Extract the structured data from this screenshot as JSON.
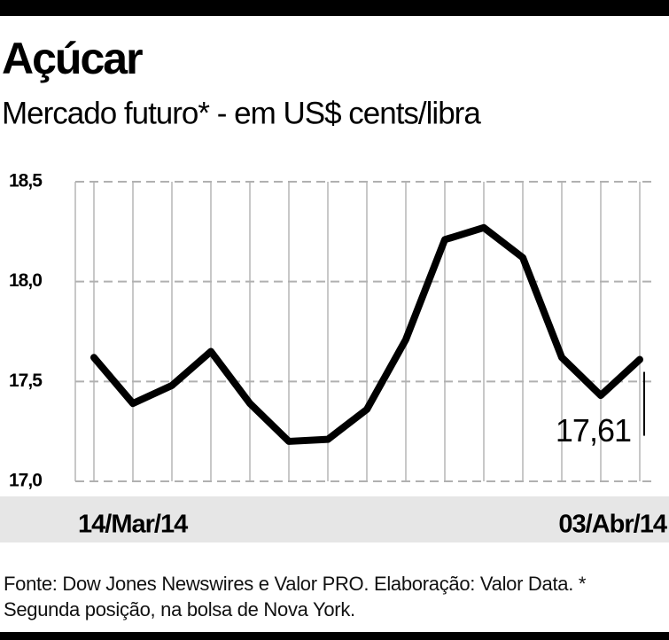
{
  "chart_data": {
    "type": "line",
    "title": "Açúcar",
    "subtitle": "Mercado futuro* - em US$ cents/libra",
    "categories": [
      "14/Mar/14",
      null,
      null,
      null,
      null,
      null,
      null,
      null,
      null,
      null,
      null,
      null,
      null,
      null,
      "03/Abr/14"
    ],
    "series": [
      {
        "name": "Açúcar",
        "color": "#000000",
        "values": [
          17.62,
          17.39,
          17.48,
          17.65,
          17.39,
          17.2,
          17.21,
          17.36,
          17.71,
          18.21,
          18.27,
          18.12,
          17.62,
          17.43,
          17.61
        ],
        "value_labels": [
          null,
          null,
          null,
          null,
          null,
          null,
          null,
          null,
          null,
          null,
          null,
          null,
          null,
          null,
          "17,61"
        ]
      }
    ],
    "ylim": [
      17.0,
      18.5
    ],
    "yticks": [
      {
        "value": 17.0,
        "label": "17,0"
      },
      {
        "value": 17.5,
        "label": "17,5"
      },
      {
        "value": 18.0,
        "label": "18,0"
      },
      {
        "value": 18.5,
        "label": "18,5"
      }
    ],
    "grid": true,
    "source": "Fonte: Dow Jones Newswires e Valor PRO. Elaboração: Valor Data. * Segunda posição, na bolsa de Nova York."
  }
}
